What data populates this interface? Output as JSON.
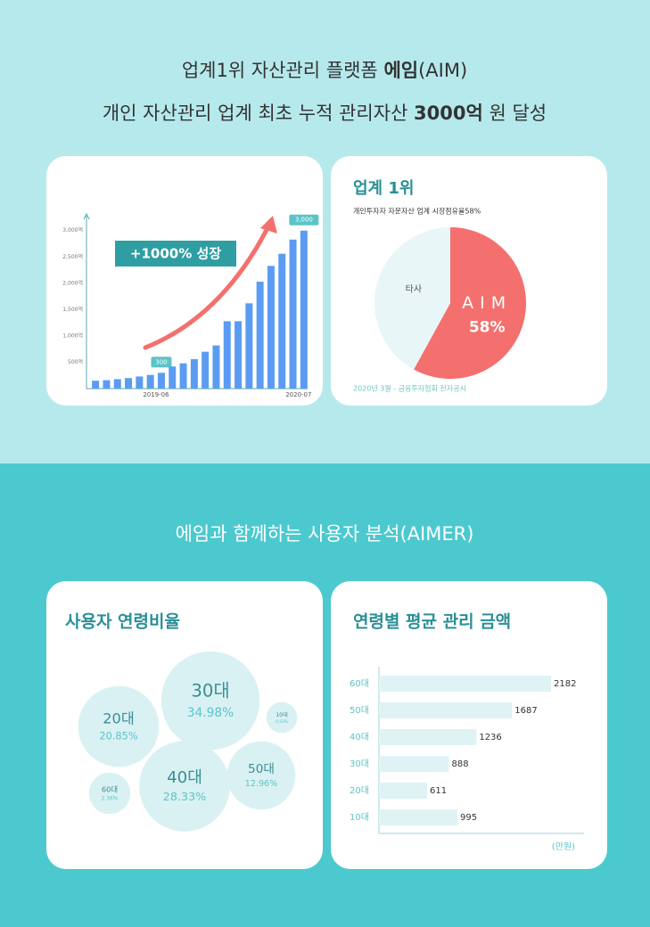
{
  "header": {
    "line1": [
      "업계1위 자산관리 플랫폼 ",
      "에임",
      "(AIM)"
    ],
    "line2": [
      "개인 자산관리 업계 최초 누적 관리자산 ",
      "3000억",
      " 원 달성"
    ]
  },
  "section2": {
    "title": "에임과 함께하는 사용자 분석(AIMER)"
  },
  "chart_data": [
    {
      "type": "bar",
      "annotation": "+1000% 성장",
      "categories": [
        null,
        null,
        null,
        null,
        null,
        null,
        "2019-06",
        null,
        null,
        null,
        null,
        null,
        null,
        null,
        null,
        null,
        null,
        null,
        null,
        "2020-07"
      ],
      "values": [
        150,
        160,
        180,
        200,
        230,
        260,
        300,
        420,
        480,
        560,
        700,
        820,
        1280,
        1280,
        1620,
        2030,
        2330,
        2560,
        2830,
        3000
      ],
      "value_labels": [
        null,
        null,
        null,
        null,
        null,
        null,
        "300",
        null,
        null,
        null,
        null,
        null,
        null,
        null,
        null,
        null,
        null,
        null,
        null,
        "3,000"
      ],
      "color": "#5b9cf2",
      "ylim": [
        0,
        3300
      ],
      "yticks": [
        {
          "value": 500,
          "label": "500억"
        },
        {
          "value": 1000,
          "label": "1,000억"
        },
        {
          "value": 1500,
          "label": "1,500억"
        },
        {
          "value": 2000,
          "label": "2,000억"
        },
        {
          "value": 2500,
          "label": "2,500억"
        },
        {
          "value": 3000,
          "label": "3,000억"
        }
      ]
    },
    {
      "type": "pie",
      "title": "업계 1위",
      "subtitle": "개인투자자 자문자산 업계 시장점유율58%",
      "categories": [
        "AIM",
        "타사"
      ],
      "values": [
        58,
        42
      ],
      "value_labels": [
        "58%",
        null
      ],
      "colors": [
        "#f4706e",
        "#e9f6f7"
      ],
      "source": "2020년 3월 - 금융투자협회 전자공시"
    },
    {
      "type": "bubble",
      "title": "사용자 연령비율",
      "categories": [
        "30대",
        "20대",
        "10대",
        "40대",
        "50대",
        "60대"
      ],
      "values": [
        34.98,
        20.85,
        0.53,
        28.33,
        12.96,
        2.36
      ],
      "value_labels": [
        "34.98%",
        "20.85%",
        "0.53%",
        "28.33%",
        "12.96%",
        "2.36%"
      ],
      "color": "#d9f1f3"
    },
    {
      "type": "hbar",
      "title": "연령별 평균 관리 금액",
      "categories": [
        "60대",
        "50대",
        "40대",
        "30대",
        "20대",
        "10대"
      ],
      "values": [
        2182,
        1687,
        1236,
        888,
        611,
        995
      ],
      "unit": "(만원)",
      "xlim": [
        0,
        2600
      ],
      "color": "#dff3f5"
    }
  ]
}
